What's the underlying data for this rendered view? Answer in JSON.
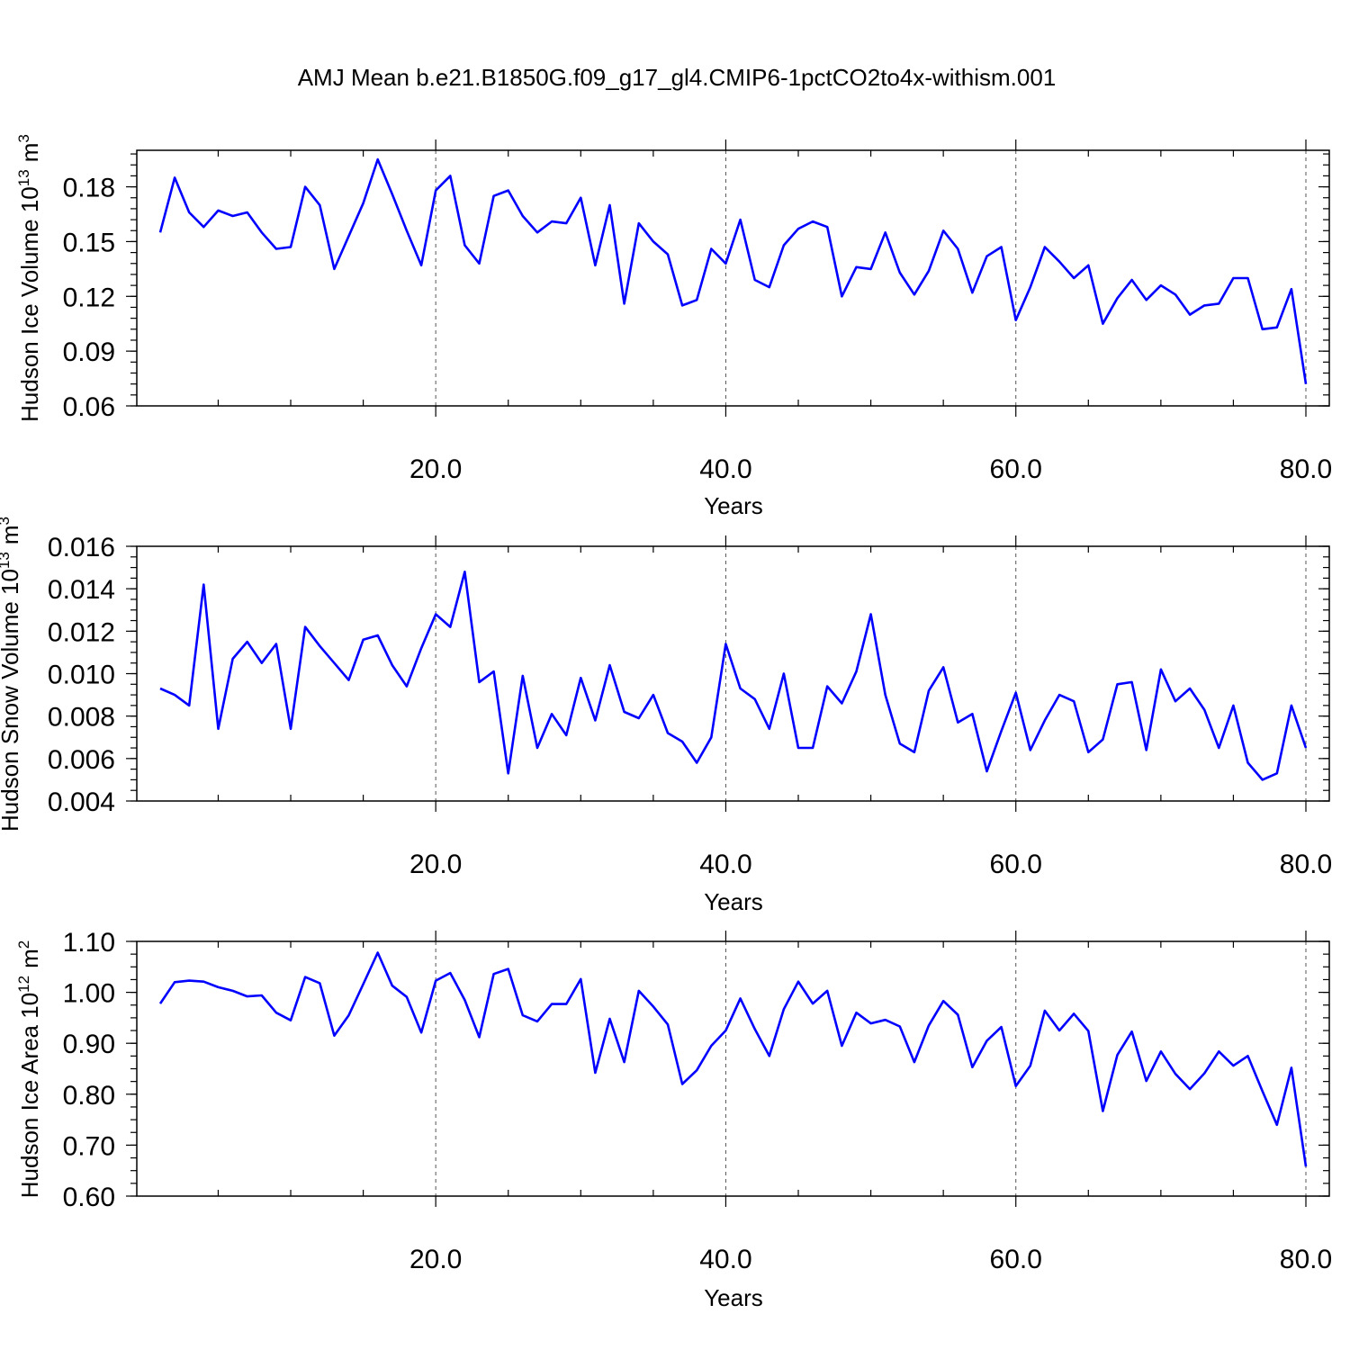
{
  "title": "AMJ Mean b.e21.B1850G.f09_g17_gl4.CMIP6-1pctCO2to4x-withism.001",
  "colors": {
    "series": "#0000ff",
    "axis": "#000000",
    "grid": "#555555"
  },
  "chart_data": [
    {
      "type": "line",
      "ylabel_main": "Hudson Ice Volume 10",
      "ylabel_exp": "13",
      "ylabel_unit": "m",
      "ylabel_unit_exp": "3",
      "xlabel": "Years",
      "xlim": [
        1,
        80
      ],
      "ylim": [
        0.06,
        0.2
      ],
      "xticks": [
        20,
        40,
        60,
        80
      ],
      "xtick_labels": [
        "20.0",
        "40.0",
        "60.0",
        "80.0"
      ],
      "yticks": [
        0.06,
        0.09,
        0.12,
        0.15,
        0.18
      ],
      "ytick_labels": [
        "0.06",
        "0.09",
        "0.12",
        "0.15",
        "0.18"
      ],
      "y_minor_step": 0.006,
      "x_minor_step": 5,
      "grid": "vertical dashed at major x ticks",
      "x": [
        1,
        2,
        3,
        4,
        5,
        6,
        7,
        8,
        9,
        10,
        11,
        12,
        13,
        14,
        15,
        16,
        17,
        18,
        19,
        20,
        21,
        22,
        23,
        24,
        25,
        26,
        27,
        28,
        29,
        30,
        31,
        32,
        33,
        34,
        35,
        36,
        37,
        38,
        39,
        40,
        41,
        42,
        43,
        44,
        45,
        46,
        47,
        48,
        49,
        50,
        51,
        52,
        53,
        54,
        55,
        56,
        57,
        58,
        59,
        60,
        61,
        62,
        63,
        64,
        65,
        66,
        67,
        68,
        69,
        70,
        71,
        72,
        73,
        74,
        75,
        76,
        77,
        78,
        79,
        80
      ],
      "y": [
        0.155,
        0.185,
        0.166,
        0.158,
        0.167,
        0.164,
        0.166,
        0.155,
        0.146,
        0.147,
        0.18,
        0.17,
        0.135,
        0.153,
        0.171,
        0.195,
        0.176,
        0.156,
        0.137,
        0.178,
        0.186,
        0.148,
        0.138,
        0.175,
        0.178,
        0.164,
        0.155,
        0.161,
        0.16,
        0.174,
        0.137,
        0.17,
        0.116,
        0.16,
        0.15,
        0.143,
        0.115,
        0.118,
        0.146,
        0.138,
        0.162,
        0.129,
        0.125,
        0.148,
        0.157,
        0.161,
        0.158,
        0.12,
        0.136,
        0.135,
        0.155,
        0.133,
        0.121,
        0.134,
        0.156,
        0.146,
        0.122,
        0.142,
        0.147,
        0.107,
        0.125,
        0.147,
        0.139,
        0.13,
        0.137,
        0.105,
        0.119,
        0.129,
        0.118,
        0.126,
        0.121,
        0.11,
        0.115,
        0.116,
        0.13,
        0.13,
        0.102,
        0.103,
        0.124,
        0.072
      ]
    },
    {
      "type": "line",
      "ylabel_main": "Hudson Snow Volume 10",
      "ylabel_exp": "13",
      "ylabel_unit": "m",
      "ylabel_unit_exp": "3",
      "xlabel": "Years",
      "xlim": [
        1,
        80
      ],
      "ylim": [
        0.004,
        0.016
      ],
      "xticks": [
        20,
        40,
        60,
        80
      ],
      "xtick_labels": [
        "20.0",
        "40.0",
        "60.0",
        "80.0"
      ],
      "yticks": [
        0.004,
        0.006,
        0.008,
        0.01,
        0.012,
        0.014,
        0.016
      ],
      "ytick_labels": [
        "0.004",
        "0.006",
        "0.008",
        "0.010",
        "0.012",
        "0.014",
        "0.016"
      ],
      "y_minor_step": 0.0005,
      "x_minor_step": 5,
      "grid": "vertical dashed at major x ticks",
      "x": [
        1,
        2,
        3,
        4,
        5,
        6,
        7,
        8,
        9,
        10,
        11,
        12,
        13,
        14,
        15,
        16,
        17,
        18,
        19,
        20,
        21,
        22,
        23,
        24,
        25,
        26,
        27,
        28,
        29,
        30,
        31,
        32,
        33,
        34,
        35,
        36,
        37,
        38,
        39,
        40,
        41,
        42,
        43,
        44,
        45,
        46,
        47,
        48,
        49,
        50,
        51,
        52,
        53,
        54,
        55,
        56,
        57,
        58,
        59,
        60,
        61,
        62,
        63,
        64,
        65,
        66,
        67,
        68,
        69,
        70,
        71,
        72,
        73,
        74,
        75,
        76,
        77,
        78,
        79,
        80
      ],
      "y": [
        0.0093,
        0.009,
        0.0085,
        0.0142,
        0.0074,
        0.0107,
        0.0115,
        0.0105,
        0.0114,
        0.0074,
        0.0122,
        0.0113,
        0.0105,
        0.0097,
        0.0116,
        0.0118,
        0.0104,
        0.0094,
        0.0112,
        0.0128,
        0.0122,
        0.0148,
        0.0096,
        0.0101,
        0.0053,
        0.0099,
        0.0065,
        0.0081,
        0.0071,
        0.0098,
        0.0078,
        0.0104,
        0.0082,
        0.0079,
        0.009,
        0.0072,
        0.0068,
        0.0058,
        0.007,
        0.0114,
        0.0093,
        0.0088,
        0.0074,
        0.01,
        0.0065,
        0.0065,
        0.0094,
        0.0086,
        0.0101,
        0.0128,
        0.009,
        0.0067,
        0.0063,
        0.0092,
        0.0103,
        0.0077,
        0.0081,
        0.0054,
        0.0073,
        0.0091,
        0.0064,
        0.0078,
        0.009,
        0.0087,
        0.0063,
        0.0069,
        0.0095,
        0.0096,
        0.0064,
        0.0102,
        0.0087,
        0.0093,
        0.0083,
        0.0065,
        0.0085,
        0.0058,
        0.005,
        0.0053,
        0.0085,
        0.0065
      ]
    },
    {
      "type": "line",
      "ylabel_main": "Hudson Ice Area 10",
      "ylabel_exp": "12",
      "ylabel_unit": "m",
      "ylabel_unit_exp": "2",
      "xlabel": "Years",
      "xlim": [
        1,
        80
      ],
      "ylim": [
        0.6,
        1.1
      ],
      "xticks": [
        20,
        40,
        60,
        80
      ],
      "xtick_labels": [
        "20.0",
        "40.0",
        "60.0",
        "80.0"
      ],
      "yticks": [
        0.6,
        0.7,
        0.8,
        0.9,
        1.0,
        1.1
      ],
      "ytick_labels": [
        "0.60",
        "0.70",
        "0.80",
        "0.90",
        "1.00",
        "1.10"
      ],
      "y_minor_step": 0.025,
      "x_minor_step": 5,
      "grid": "vertical dashed at major x ticks",
      "x": [
        1,
        2,
        3,
        4,
        5,
        6,
        7,
        8,
        9,
        10,
        11,
        12,
        13,
        14,
        15,
        16,
        17,
        18,
        19,
        20,
        21,
        22,
        23,
        24,
        25,
        26,
        27,
        28,
        29,
        30,
        31,
        32,
        33,
        34,
        35,
        36,
        37,
        38,
        39,
        40,
        41,
        42,
        43,
        44,
        45,
        46,
        47,
        48,
        49,
        50,
        51,
        52,
        53,
        54,
        55,
        56,
        57,
        58,
        59,
        60,
        61,
        62,
        63,
        64,
        65,
        66,
        67,
        68,
        69,
        70,
        71,
        72,
        73,
        74,
        75,
        76,
        77,
        78,
        79,
        80
      ],
      "y": [
        0.978,
        1.02,
        1.023,
        1.021,
        1.01,
        1.003,
        0.992,
        0.994,
        0.96,
        0.945,
        1.03,
        1.018,
        0.915,
        0.955,
        1.016,
        1.078,
        1.013,
        0.991,
        0.921,
        1.023,
        1.038,
        0.985,
        0.912,
        1.036,
        1.046,
        0.955,
        0.943,
        0.977,
        0.977,
        1.026,
        0.842,
        0.948,
        0.863,
        1.003,
        0.972,
        0.937,
        0.82,
        0.847,
        0.895,
        0.925,
        0.988,
        0.928,
        0.875,
        0.967,
        1.021,
        0.978,
        1.003,
        0.895,
        0.96,
        0.939,
        0.946,
        0.933,
        0.863,
        0.935,
        0.983,
        0.956,
        0.853,
        0.905,
        0.932,
        0.816,
        0.856,
        0.964,
        0.925,
        0.958,
        0.924,
        0.767,
        0.877,
        0.923,
        0.826,
        0.884,
        0.84,
        0.81,
        0.841,
        0.884,
        0.856,
        0.875,
        0.806,
        0.74,
        0.852,
        0.658
      ]
    }
  ]
}
